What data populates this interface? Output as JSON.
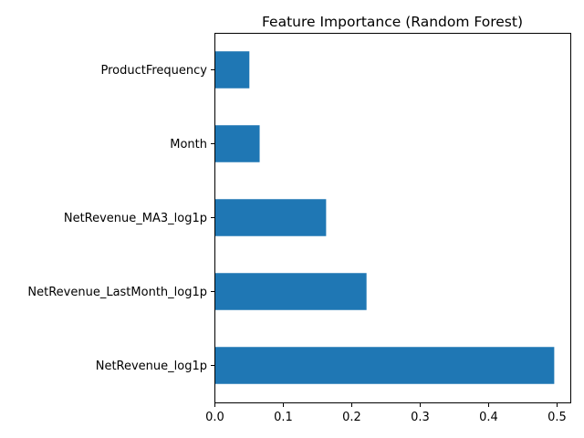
{
  "chart_data": {
    "type": "bar",
    "orientation": "horizontal",
    "title": "Feature Importance (Random Forest)",
    "xlabel": "",
    "ylabel": "",
    "categories": [
      "NetRevenue_log1p",
      "NetRevenue_LastMonth_log1p",
      "NetRevenue_MA3_log1p",
      "Month",
      "ProductFrequency"
    ],
    "values": [
      0.496,
      0.222,
      0.163,
      0.066,
      0.051
    ],
    "xlim": [
      0,
      0.5208
    ],
    "xticks": [
      "0.0",
      "0.1",
      "0.2",
      "0.3",
      "0.4",
      "0.5"
    ],
    "bar_color": "#1f77b4",
    "grid": false,
    "legend": "none"
  }
}
